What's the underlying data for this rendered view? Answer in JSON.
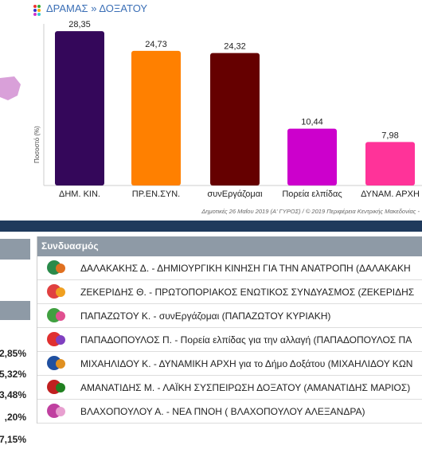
{
  "header": {
    "breadcrumb": "ΔΡΑΜΑΣ » ΔΟΞΑΤΟΥ"
  },
  "chart_data": {
    "type": "bar",
    "y_label": "Ποσοστό (%)",
    "categories": [
      "ΔΗΜ. ΚΙΝ.",
      "ΠΡ.ΕΝ.ΣΥΝ.",
      "συνΕργάζομαι",
      "Πορεία ελπίδας",
      "ΔΥΝΑΜ. ΑΡΧΗ"
    ],
    "values": [
      28.35,
      24.73,
      24.32,
      10.44,
      7.98
    ],
    "value_labels": [
      "28,35",
      "24,73",
      "24,32",
      "10,44",
      "7,98"
    ],
    "colors": [
      "#34075a",
      "#ff8000",
      "#650000",
      "#cc00cc",
      "#ff3399"
    ],
    "credit": "Δημοτικές 26 Μαΐου 2019 (Α' ΓΥΡΟΣ) / © 2019 Περιφέρεια Κεντρικής Μακεδονίας -"
  },
  "table": {
    "header": "Συνδυασμός",
    "rows": [
      "ΔΑΛΑΚΑΚΗΣ Δ. - ΔΗΜΙΟΥΡΓΙΚΗ ΚΙΝΗΣΗ ΓΙΑ ΤΗΝ ΑΝΑΤΡΟΠΗ (ΔΑΛΑΚΑΚΗ",
      "ΖΕΚΕΡΙΔΗΣ Θ. - ΠΡΩΤΟΠΟΡΙΑΚΟΣ ΕΝΩΤΙΚΟΣ ΣΥΝΔΥΑΣΜΟΣ (ΖΕΚΕΡΙΔΗΣ",
      "ΠΑΠΑΖΩΤΟΥ Κ. - συνΕργάζομαι (ΠΑΠΑΖΩΤΟΥ ΚΥΡΙΑΚΗ)",
      "ΠΑΠΑΔΟΠΟΥΛΟΣ Π. - Πορεία ελπίδας για την αλλαγή (ΠΑΠΑΔΟΠΟΥΛΟΣ ΠΑ",
      "ΜΙΧΑΗΛΙΔΟΥ Κ. - ΔΥΝΑΜΙΚΗ ΑΡΧΗ για το Δήμο Δοξάτου (ΜΙΧΑΗΛΙΔΟΥ ΚΩΝ",
      "ΑΜΑΝΑΤΙΔΗΣ Μ. - ΛΑΪΚΗ ΣΥΣΠΕΙΡΩΣΗ ΔΟΞΑΤΟΥ (ΑΜΑΝΑΤΙΔΗΣ ΜΑΡΙΟΣ)",
      "ΒΛΑΧΟΠΟΥΛΟΥ Α. - ΝΕΑ ΠΝΟΗ ( ΒΛΑΧΟΠΟΥΛΟΥ ΑΛΕΞΑΝΔΡΑ)"
    ]
  },
  "left_panel": {
    "percentages": [
      "2,85%",
      "5,32%",
      "3,48%",
      ",20%",
      "7,15%"
    ]
  }
}
